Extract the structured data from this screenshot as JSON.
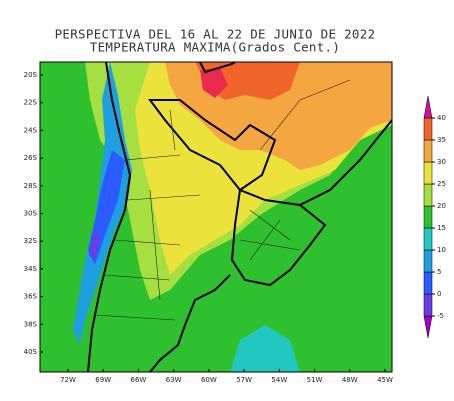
{
  "title": "PERSPECTIVA DEL 16 AL 22 DE JUNIO DE 2022",
  "subtitle": "TEMPERATURA MAXIMA(Grados Cent.)",
  "latitude_labels": [
    "20S",
    "22S",
    "24S",
    "26S",
    "28S",
    "30S",
    "32S",
    "34S",
    "36S",
    "38S",
    "40S"
  ],
  "longitude_labels": [
    "72W",
    "69W",
    "66W",
    "63W",
    "60W",
    "57W",
    "54W",
    "51W",
    "48W",
    "45W"
  ],
  "colorbar": {
    "levels": [
      -5,
      0,
      5,
      10,
      15,
      20,
      25,
      30,
      35,
      40
    ],
    "colors": [
      "#a000c8",
      "#6a3ce6",
      "#2a5cff",
      "#1ea0e0",
      "#22c8c0",
      "#2ec02e",
      "#a6e040",
      "#ece23c",
      "#f4a640",
      "#f0642a",
      "#e82a50",
      "#d0109a"
    ]
  }
}
